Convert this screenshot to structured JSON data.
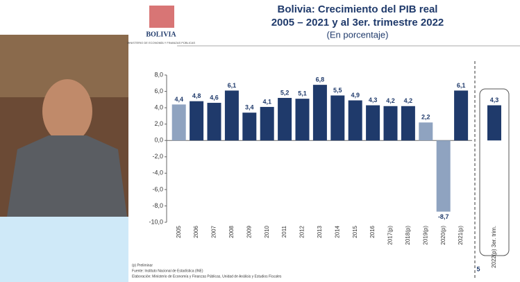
{
  "header": {
    "logo": "BOLIVIA",
    "ministry": "MINISTERIO DE ECONOMÍA Y FINANZAS PÚBLICAS"
  },
  "chart_data": {
    "type": "bar",
    "title": "Bolivia: Crecimiento del PIB real",
    "subtitle": "2005 – 2021 y al 3er. trimestre 2022",
    "unit_note": "(En porcentaje)",
    "categories": [
      "2005",
      "2006",
      "2007",
      "2008",
      "2009",
      "2010",
      "2011",
      "2012",
      "2013",
      "2014",
      "2015",
      "2016",
      "2017(p)",
      "2018(p)",
      "2019(p)",
      "2020(p)",
      "2021(p)",
      "2022(p) 3er. trim."
    ],
    "values": [
      4.4,
      4.8,
      4.6,
      6.1,
      3.4,
      4.1,
      5.2,
      5.1,
      6.8,
      5.5,
      4.9,
      4.3,
      4.2,
      4.2,
      2.2,
      -8.7,
      6.1,
      4.3
    ],
    "value_labels": [
      "4,4",
      "4,8",
      "4,6",
      "6,1",
      "3,4",
      "4,1",
      "5,2",
      "5,1",
      "6,8",
      "5,5",
      "4,9",
      "4,3",
      "4,2",
      "4,2",
      "2,2",
      "-8,7",
      "6,1",
      "4,3"
    ],
    "colors": [
      "#8fa3c0",
      "#1f3a6b",
      "#1f3a6b",
      "#1f3a6b",
      "#1f3a6b",
      "#1f3a6b",
      "#1f3a6b",
      "#1f3a6b",
      "#1f3a6b",
      "#1f3a6b",
      "#1f3a6b",
      "#1f3a6b",
      "#1f3a6b",
      "#1f3a6b",
      "#8fa3c0",
      "#8fa3c0",
      "#1f3a6b",
      "#1f3a6b"
    ],
    "ylim": [
      -10,
      8
    ],
    "yticks": [
      {
        "value": -10,
        "label": "-10,0"
      },
      {
        "value": -8,
        "label": "-8,0"
      },
      {
        "value": -6,
        "label": "-6,0"
      },
      {
        "value": -4,
        "label": "-4,0"
      },
      {
        "value": -2,
        "label": "-2,0"
      },
      {
        "value": 0,
        "label": "0,0"
      },
      {
        "value": 2,
        "label": "2,0"
      },
      {
        "value": 4,
        "label": "4,0"
      },
      {
        "value": 6,
        "label": "6,0"
      },
      {
        "value": 8,
        "label": "8,0"
      }
    ],
    "grid": false
  },
  "footer": {
    "note": "(p) Preliminar",
    "source": "Fuente: Instituto Nacional de Estadística (INE)",
    "credit": "Elaboración: Ministerio de Economía y Finanzas Públicas, Unidad de Análisis y Estudios Fiscales",
    "page": "5"
  }
}
